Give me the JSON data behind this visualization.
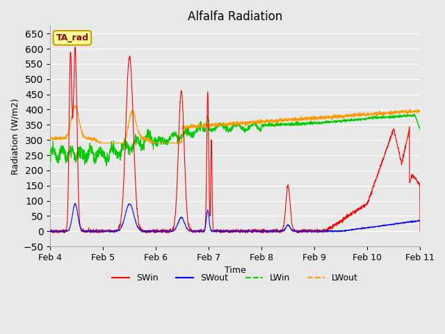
{
  "title": "Alfalfa Radiation",
  "xlabel": "Time",
  "ylabel": "Radiation (W/m2)",
  "ylim": [
    -50,
    675
  ],
  "yticks": [
    -50,
    0,
    50,
    100,
    150,
    200,
    250,
    300,
    350,
    400,
    450,
    500,
    550,
    600,
    650
  ],
  "bg_color": "#e8e8e8",
  "annotation_text": "TA_rad",
  "annotation_bg": "#ffff99",
  "annotation_border": "#cc9900",
  "annotation_text_color": "#990000",
  "series_colors": {
    "SWin": "#ff0000",
    "SWout": "#0000ff",
    "LWin": "#00cc00",
    "LWout": "#ff9900"
  },
  "x_tick_labels": [
    "Feb 4",
    "Feb 5",
    "Feb 6",
    "Feb 7",
    "Feb 8",
    "Feb 9",
    "Feb 10",
    "Feb 11"
  ]
}
